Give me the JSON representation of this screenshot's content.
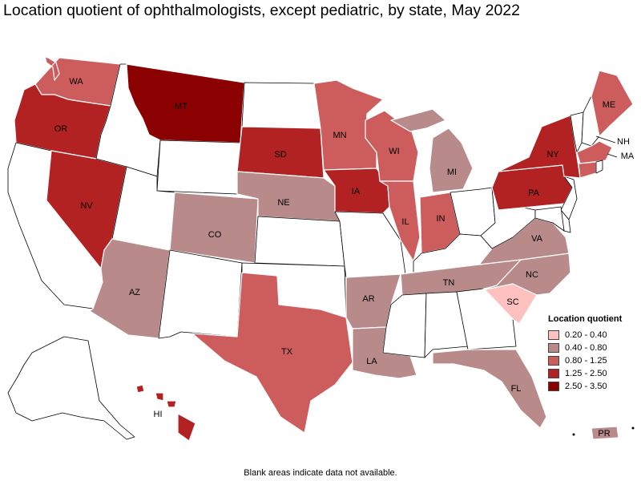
{
  "title": "Location quotient of ophthalmologists, except pediatric, by state, May 2022",
  "footnote": "Blank areas indicate data not available.",
  "legend": {
    "title": "Location quotient",
    "items": [
      {
        "label": "0.20 - 0.40",
        "color": "#ffc0c0"
      },
      {
        "label": "0.40 - 0.80",
        "color": "#b88a8a"
      },
      {
        "label": "0.80 - 1.25",
        "color": "#cd5c5c"
      },
      {
        "label": "1.25 - 2.50",
        "color": "#b22222"
      },
      {
        "label": "2.50 - 3.50",
        "color": "#8b0000"
      }
    ]
  },
  "colors": {
    "no_data": "#ffffff",
    "border": "#000000"
  },
  "states": {
    "WA": {
      "label": "WA",
      "class": "0.80 - 1.25"
    },
    "OR": {
      "label": "OR",
      "class": "1.25 - 2.50"
    },
    "CA": {
      "label": "",
      "class": "no data"
    },
    "NV": {
      "label": "NV",
      "class": "1.25 - 2.50"
    },
    "ID": {
      "label": "",
      "class": "no data"
    },
    "MT": {
      "label": "MT",
      "class": "2.50 - 3.50"
    },
    "WY": {
      "label": "",
      "class": "no data"
    },
    "UT": {
      "label": "",
      "class": "no data"
    },
    "AZ": {
      "label": "AZ",
      "class": "0.40 - 0.80"
    },
    "CO": {
      "label": "CO",
      "class": "0.40 - 0.80"
    },
    "NM": {
      "label": "",
      "class": "no data"
    },
    "ND": {
      "label": "",
      "class": "no data"
    },
    "SD": {
      "label": "SD",
      "class": "1.25 - 2.50"
    },
    "NE": {
      "label": "NE",
      "class": "0.40 - 0.80"
    },
    "KS": {
      "label": "",
      "class": "no data"
    },
    "OK": {
      "label": "",
      "class": "no data"
    },
    "TX": {
      "label": "TX",
      "class": "0.80 - 1.25"
    },
    "MN": {
      "label": "MN",
      "class": "0.80 - 1.25"
    },
    "IA": {
      "label": "IA",
      "class": "1.25 - 2.50"
    },
    "MO": {
      "label": "",
      "class": "no data"
    },
    "AR": {
      "label": "AR",
      "class": "0.40 - 0.80"
    },
    "LA": {
      "label": "LA",
      "class": "0.40 - 0.80"
    },
    "WI": {
      "label": "WI",
      "class": "0.80 - 1.25"
    },
    "IL": {
      "label": "IL",
      "class": "0.80 - 1.25"
    },
    "MI": {
      "label": "MI",
      "class": "0.40 - 0.80"
    },
    "IN": {
      "label": "IN",
      "class": "0.80 - 1.25"
    },
    "OH": {
      "label": "",
      "class": "no data"
    },
    "KY": {
      "label": "",
      "class": "no data"
    },
    "TN": {
      "label": "TN",
      "class": "0.40 - 0.80"
    },
    "MS": {
      "label": "",
      "class": "no data"
    },
    "AL": {
      "label": "",
      "class": "no data"
    },
    "GA": {
      "label": "",
      "class": "no data"
    },
    "FL": {
      "label": "FL",
      "class": "0.40 - 0.80"
    },
    "SC": {
      "label": "SC",
      "class": "0.20 - 0.40"
    },
    "NC": {
      "label": "NC",
      "class": "0.40 - 0.80"
    },
    "VA": {
      "label": "VA",
      "class": "0.40 - 0.80"
    },
    "WV": {
      "label": "",
      "class": "no data"
    },
    "PA": {
      "label": "PA",
      "class": "1.25 - 2.50"
    },
    "NY": {
      "label": "NY",
      "class": "1.25 - 2.50"
    },
    "NJ": {
      "label": "",
      "class": "no data"
    },
    "VT": {
      "label": "",
      "class": "no data"
    },
    "NH": {
      "label": "NH",
      "class": "no data"
    },
    "ME": {
      "label": "ME",
      "class": "0.80 - 1.25"
    },
    "MA": {
      "label": "MA",
      "class": "0.80 - 1.25"
    },
    "CT": {
      "label": "",
      "class": "0.80 - 1.25"
    },
    "AK": {
      "label": "",
      "class": "no data"
    },
    "HI": {
      "label": "HI",
      "class": "1.25 - 2.50"
    },
    "PR": {
      "label": "PR",
      "class": "0.40 - 0.80"
    }
  }
}
